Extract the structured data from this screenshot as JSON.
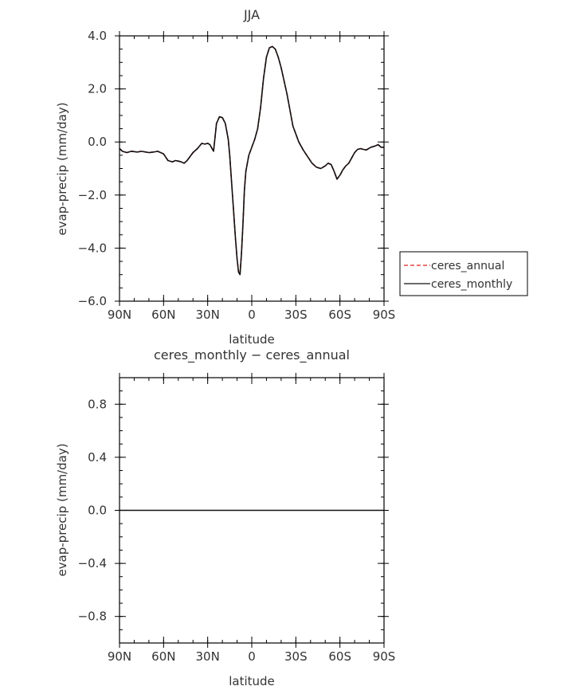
{
  "chart_data": [
    {
      "type": "line",
      "title": "JJA",
      "xlabel": "latitude",
      "ylabel": "evap-precip (mm/day)",
      "xlim": [
        90,
        -90
      ],
      "ylim": [
        -6,
        4
      ],
      "x_ticks": [
        90,
        60,
        30,
        0,
        -30,
        -60,
        -90
      ],
      "x_tick_labels": [
        "90N",
        "60N",
        "30N",
        "0",
        "30S",
        "60S",
        "90S"
      ],
      "y_ticks": [
        -6,
        -4,
        -2,
        0,
        2,
        4
      ],
      "y_tick_labels": [
        "−6.0",
        "−4.0",
        "−2.0",
        "0.0",
        "2.0",
        "4.0"
      ],
      "legend_position": "right",
      "series": [
        {
          "name": "ceres_annual",
          "color": "#dd2222",
          "dash": "dashed",
          "x": [
            90,
            88,
            85,
            82,
            78,
            75,
            70,
            67,
            64,
            62,
            60,
            57,
            54,
            52,
            50,
            48,
            46,
            44,
            42,
            40,
            37,
            34,
            32,
            30,
            28.5,
            27.5,
            26,
            24,
            22,
            20,
            18,
            16,
            15,
            14,
            13,
            12,
            11,
            10,
            9,
            8,
            7,
            6,
            5,
            4,
            2,
            0,
            -2,
            -4,
            -6,
            -8,
            -10,
            -12,
            -14,
            -16,
            -18,
            -20,
            -22,
            -24,
            -26,
            -28,
            -30,
            -32,
            -35,
            -38,
            -41,
            -44,
            -47,
            -50,
            -52,
            -54,
            -56,
            -58,
            -60,
            -62,
            -64,
            -66,
            -68,
            -70,
            -72,
            -74,
            -76,
            -78,
            -81,
            -84,
            -86,
            -88,
            -90
          ],
          "y": [
            -0.25,
            -0.35,
            -0.4,
            -0.35,
            -0.38,
            -0.35,
            -0.4,
            -0.38,
            -0.35,
            -0.4,
            -0.45,
            -0.7,
            -0.75,
            -0.7,
            -0.72,
            -0.75,
            -0.8,
            -0.7,
            -0.55,
            -0.4,
            -0.25,
            -0.05,
            -0.08,
            -0.05,
            -0.1,
            -0.2,
            -0.35,
            0.7,
            0.95,
            0.92,
            0.7,
            0.1,
            -0.5,
            -1.3,
            -2.1,
            -2.9,
            -3.7,
            -4.4,
            -4.9,
            -5.0,
            -4.2,
            -3.1,
            -1.8,
            -1.1,
            -0.5,
            -0.2,
            0.1,
            0.5,
            1.3,
            2.4,
            3.2,
            3.55,
            3.6,
            3.5,
            3.2,
            2.8,
            2.3,
            1.8,
            1.2,
            0.6,
            0.3,
            0.0,
            -0.3,
            -0.55,
            -0.8,
            -0.95,
            -1.0,
            -0.9,
            -0.8,
            -0.85,
            -1.1,
            -1.4,
            -1.25,
            -1.05,
            -0.9,
            -0.8,
            -0.6,
            -0.4,
            -0.28,
            -0.25,
            -0.28,
            -0.3,
            -0.2,
            -0.15,
            -0.1,
            -0.2,
            -0.2
          ]
        },
        {
          "name": "ceres_monthly",
          "color": "#111111",
          "dash": "solid",
          "x": [
            90,
            88,
            85,
            82,
            78,
            75,
            70,
            67,
            64,
            62,
            60,
            57,
            54,
            52,
            50,
            48,
            46,
            44,
            42,
            40,
            37,
            34,
            32,
            30,
            28.5,
            27.5,
            26,
            24,
            22,
            20,
            18,
            16,
            15,
            14,
            13,
            12,
            11,
            10,
            9,
            8,
            7,
            6,
            5,
            4,
            2,
            0,
            -2,
            -4,
            -6,
            -8,
            -10,
            -12,
            -14,
            -16,
            -18,
            -20,
            -22,
            -24,
            -26,
            -28,
            -30,
            -32,
            -35,
            -38,
            -41,
            -44,
            -47,
            -50,
            -52,
            -54,
            -56,
            -58,
            -60,
            -62,
            -64,
            -66,
            -68,
            -70,
            -72,
            -74,
            -76,
            -78,
            -81,
            -84,
            -86,
            -88,
            -90
          ],
          "y": [
            -0.25,
            -0.35,
            -0.4,
            -0.35,
            -0.38,
            -0.35,
            -0.4,
            -0.38,
            -0.35,
            -0.4,
            -0.45,
            -0.7,
            -0.75,
            -0.7,
            -0.72,
            -0.75,
            -0.8,
            -0.7,
            -0.55,
            -0.4,
            -0.25,
            -0.05,
            -0.08,
            -0.05,
            -0.1,
            -0.2,
            -0.35,
            0.7,
            0.95,
            0.92,
            0.7,
            0.1,
            -0.5,
            -1.3,
            -2.1,
            -2.9,
            -3.7,
            -4.4,
            -4.9,
            -5.0,
            -4.2,
            -3.1,
            -1.8,
            -1.1,
            -0.5,
            -0.2,
            0.1,
            0.5,
            1.3,
            2.4,
            3.2,
            3.55,
            3.6,
            3.5,
            3.2,
            2.8,
            2.3,
            1.8,
            1.2,
            0.6,
            0.3,
            0.0,
            -0.3,
            -0.55,
            -0.8,
            -0.95,
            -1.0,
            -0.9,
            -0.8,
            -0.85,
            -1.1,
            -1.4,
            -1.25,
            -1.05,
            -0.9,
            -0.8,
            -0.6,
            -0.4,
            -0.28,
            -0.25,
            -0.28,
            -0.3,
            -0.2,
            -0.15,
            -0.1,
            -0.2,
            -0.2
          ]
        }
      ]
    },
    {
      "type": "line",
      "title": "ceres_monthly − ceres_annual",
      "xlabel": "latitude",
      "ylabel": "evap-precip (mm/day)",
      "xlim": [
        90,
        -90
      ],
      "ylim": [
        -1.0,
        1.0
      ],
      "x_ticks": [
        90,
        60,
        30,
        0,
        -30,
        -60,
        -90
      ],
      "x_tick_labels": [
        "90N",
        "60N",
        "30N",
        "0",
        "30S",
        "60S",
        "90S"
      ],
      "y_ticks": [
        -0.8,
        -0.4,
        0.0,
        0.4,
        0.8
      ],
      "y_tick_labels": [
        "−0.8",
        "−0.4",
        "0.0",
        "0.4",
        "0.8"
      ],
      "series": [
        {
          "color": "#111111",
          "dash": "solid",
          "x": [
            90,
            -90
          ],
          "y": [
            0.0,
            0.0
          ]
        }
      ]
    }
  ]
}
